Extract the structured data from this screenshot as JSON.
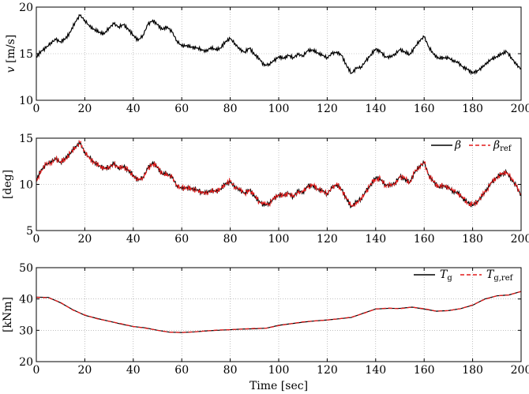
{
  "chart_data": [
    {
      "type": "line",
      "ylabel_var": "v",
      "ylabel_unit": "[m/s]",
      "xlim": [
        0,
        200
      ],
      "ylim": [
        10,
        20
      ],
      "grid": true,
      "x_ticks": [
        "0",
        "20",
        "40",
        "60",
        "80",
        "100",
        "120",
        "140",
        "160",
        "180",
        "200"
      ],
      "y_ticks": [
        "10",
        "15",
        "20"
      ],
      "series": [
        {
          "color": "#000000",
          "dash": "solid",
          "x": [
            0,
            2,
            4,
            6,
            8,
            10,
            12,
            14,
            16,
            18,
            20,
            22,
            24,
            26,
            28,
            30,
            32,
            34,
            36,
            38,
            40,
            42,
            44,
            46,
            48,
            50,
            52,
            54,
            56,
            58,
            60,
            62,
            64,
            66,
            68,
            70,
            72,
            74,
            76,
            78,
            80,
            82,
            84,
            86,
            88,
            90,
            92,
            94,
            96,
            98,
            100,
            102,
            104,
            106,
            108,
            110,
            112,
            114,
            116,
            118,
            120,
            122,
            124,
            126,
            128,
            130,
            132,
            134,
            136,
            138,
            140,
            142,
            144,
            146,
            148,
            150,
            152,
            154,
            156,
            158,
            160,
            162,
            164,
            166,
            168,
            170,
            172,
            174,
            176,
            178,
            180,
            182,
            184,
            186,
            188,
            190,
            192,
            194,
            196,
            198,
            200
          ],
          "values": [
            14.6,
            15.3,
            15.6,
            16.2,
            16.5,
            16.3,
            16.6,
            17.3,
            18.4,
            19.1,
            18.6,
            17.9,
            17.6,
            17.3,
            17.1,
            17.8,
            18.2,
            17.9,
            18.1,
            17.6,
            17.0,
            16.4,
            17.0,
            18.1,
            18.6,
            18.1,
            17.6,
            17.9,
            17.3,
            16.4,
            15.8,
            15.9,
            15.7,
            15.6,
            15.5,
            15.2,
            15.7,
            15.4,
            15.6,
            16.3,
            16.6,
            16.1,
            15.4,
            15.2,
            15.6,
            14.9,
            14.5,
            13.7,
            13.9,
            14.2,
            14.7,
            14.5,
            14.8,
            14.6,
            14.9,
            14.8,
            15.3,
            15.4,
            15.1,
            14.8,
            14.6,
            15.0,
            15.2,
            14.8,
            13.7,
            12.9,
            13.4,
            13.6,
            14.2,
            14.9,
            15.5,
            15.2,
            14.7,
            14.6,
            15.0,
            15.4,
            15.2,
            14.9,
            15.6,
            16.4,
            16.8,
            15.7,
            14.9,
            14.5,
            14.6,
            14.5,
            14.3,
            14.0,
            13.6,
            13.3,
            12.9,
            13.2,
            13.5,
            14.1,
            14.4,
            14.7,
            15.0,
            15.2,
            14.6,
            13.8,
            13.4
          ]
        }
      ]
    },
    {
      "type": "line",
      "ylabel": "[deg]",
      "xlim": [
        0,
        200
      ],
      "ylim": [
        5,
        15
      ],
      "grid": true,
      "x_ticks": [
        "0",
        "20",
        "40",
        "60",
        "80",
        "100",
        "120",
        "140",
        "160",
        "180",
        "200"
      ],
      "y_ticks": [
        "5",
        "10",
        "15"
      ],
      "legend_position": "top-right",
      "series": [
        {
          "name": "β",
          "color": "#000000",
          "dash": "solid",
          "x": [
            0,
            2,
            4,
            6,
            8,
            10,
            12,
            14,
            16,
            18,
            20,
            22,
            24,
            26,
            28,
            30,
            32,
            34,
            36,
            38,
            40,
            42,
            44,
            46,
            48,
            50,
            52,
            54,
            56,
            58,
            60,
            62,
            64,
            66,
            68,
            70,
            72,
            74,
            76,
            78,
            80,
            82,
            84,
            86,
            88,
            90,
            92,
            94,
            96,
            98,
            100,
            102,
            104,
            106,
            108,
            110,
            112,
            114,
            116,
            118,
            120,
            122,
            124,
            126,
            128,
            130,
            132,
            134,
            136,
            138,
            140,
            142,
            144,
            146,
            148,
            150,
            152,
            154,
            156,
            158,
            160,
            162,
            164,
            166,
            168,
            170,
            172,
            174,
            176,
            178,
            180,
            182,
            184,
            186,
            188,
            190,
            192,
            194,
            196,
            198,
            200
          ],
          "values": [
            10.4,
            11.6,
            12.1,
            12.5,
            12.7,
            12.4,
            12.8,
            13.3,
            14.1,
            14.4,
            13.5,
            12.8,
            12.4,
            12.0,
            11.7,
            11.9,
            12.2,
            11.8,
            11.9,
            11.5,
            11.0,
            10.4,
            10.8,
            11.7,
            12.4,
            11.8,
            11.1,
            11.2,
            10.7,
            9.9,
            9.5,
            9.7,
            9.5,
            9.4,
            9.2,
            9.0,
            9.4,
            9.2,
            9.5,
            10.1,
            10.2,
            9.8,
            9.3,
            9.1,
            9.4,
            8.7,
            8.2,
            7.7,
            8.0,
            8.4,
            8.9,
            8.8,
            9.0,
            8.7,
            9.2,
            9.2,
            9.8,
            9.9,
            9.5,
            9.3,
            9.0,
            9.6,
            10.0,
            9.4,
            8.4,
            7.6,
            8.0,
            8.5,
            9.2,
            10.0,
            10.7,
            10.5,
            10.0,
            9.8,
            10.2,
            10.8,
            10.6,
            10.2,
            11.2,
            12.0,
            12.3,
            11.0,
            10.2,
            9.7,
            9.9,
            9.6,
            9.3,
            9.0,
            8.5,
            8.0,
            7.7,
            8.2,
            8.7,
            9.6,
            10.2,
            10.8,
            11.1,
            11.3,
            10.6,
            9.8,
            8.8
          ]
        },
        {
          "name": "βref",
          "color": "#e21a1a",
          "dash": "dashed",
          "x": [
            0,
            2,
            4,
            6,
            8,
            10,
            12,
            14,
            16,
            18,
            20,
            22,
            24,
            26,
            28,
            30,
            32,
            34,
            36,
            38,
            40,
            42,
            44,
            46,
            48,
            50,
            52,
            54,
            56,
            58,
            60,
            62,
            64,
            66,
            68,
            70,
            72,
            74,
            76,
            78,
            80,
            82,
            84,
            86,
            88,
            90,
            92,
            94,
            96,
            98,
            100,
            102,
            104,
            106,
            108,
            110,
            112,
            114,
            116,
            118,
            120,
            122,
            124,
            126,
            128,
            130,
            132,
            134,
            136,
            138,
            140,
            142,
            144,
            146,
            148,
            150,
            152,
            154,
            156,
            158,
            160,
            162,
            164,
            166,
            168,
            170,
            172,
            174,
            176,
            178,
            180,
            182,
            184,
            186,
            188,
            190,
            192,
            194,
            196,
            198,
            200
          ],
          "values": [
            10.3,
            11.5,
            12.1,
            12.4,
            12.7,
            12.5,
            12.7,
            13.4,
            14.0,
            14.5,
            13.6,
            12.8,
            12.3,
            12.1,
            11.6,
            11.9,
            12.1,
            11.9,
            11.8,
            11.6,
            10.9,
            10.5,
            10.8,
            11.6,
            12.3,
            11.9,
            11.1,
            11.1,
            10.8,
            9.9,
            9.6,
            9.6,
            9.6,
            9.3,
            9.3,
            9.0,
            9.3,
            9.3,
            9.4,
            10.1,
            10.3,
            9.7,
            9.4,
            9.0,
            9.4,
            8.8,
            8.1,
            7.8,
            7.9,
            8.5,
            8.8,
            8.9,
            8.9,
            8.8,
            9.1,
            9.3,
            9.7,
            9.9,
            9.6,
            9.2,
            9.1,
            9.5,
            10.1,
            9.3,
            8.5,
            7.7,
            7.9,
            8.6,
            9.1,
            10.1,
            10.6,
            10.6,
            9.9,
            9.9,
            10.1,
            10.8,
            10.7,
            10.1,
            11.3,
            11.9,
            12.4,
            10.9,
            10.3,
            9.6,
            10.0,
            9.5,
            9.4,
            8.9,
            8.6,
            7.9,
            7.8,
            8.1,
            8.8,
            9.5,
            10.3,
            10.7,
            11.2,
            11.2,
            10.7,
            9.7,
            8.9
          ]
        }
      ]
    },
    {
      "type": "line",
      "ylabel": "[kNm]",
      "xlabel": "Time [sec]",
      "xlim": [
        0,
        200
      ],
      "ylim": [
        20,
        50
      ],
      "grid": true,
      "x_ticks": [
        "0",
        "20",
        "40",
        "60",
        "80",
        "100",
        "120",
        "140",
        "160",
        "180",
        "200"
      ],
      "y_ticks": [
        "20",
        "30",
        "40",
        "50"
      ],
      "legend_position": "top-right",
      "series": [
        {
          "name": "Tg",
          "color": "#000000",
          "dash": "solid",
          "x": [
            0,
            5,
            10,
            15,
            20,
            25,
            30,
            35,
            40,
            45,
            50,
            55,
            60,
            65,
            70,
            75,
            80,
            85,
            90,
            95,
            100,
            105,
            110,
            115,
            120,
            125,
            130,
            135,
            140,
            145,
            150,
            155,
            160,
            165,
            170,
            175,
            180,
            185,
            190,
            195,
            200
          ],
          "values": [
            40.6,
            40.5,
            38.8,
            36.6,
            34.8,
            33.8,
            32.9,
            32.0,
            31.2,
            30.8,
            30.0,
            29.4,
            29.3,
            29.5,
            29.8,
            30.0,
            30.2,
            30.4,
            30.5,
            30.7,
            31.6,
            32.1,
            32.6,
            33.0,
            33.3,
            33.7,
            34.1,
            35.5,
            36.8,
            37.0,
            37.0,
            37.4,
            36.8,
            36.1,
            36.3,
            36.9,
            38.0,
            40.0,
            41.0,
            41.3,
            42.4
          ]
        },
        {
          "name": "Tg,ref",
          "color": "#e21a1a",
          "dash": "dashed",
          "x": [
            0,
            5,
            10,
            15,
            20,
            25,
            30,
            35,
            40,
            45,
            50,
            55,
            60,
            65,
            70,
            75,
            80,
            85,
            90,
            95,
            100,
            105,
            110,
            115,
            120,
            125,
            130,
            135,
            140,
            145,
            150,
            155,
            160,
            165,
            170,
            175,
            180,
            185,
            190,
            195,
            200
          ],
          "values": [
            40.5,
            40.4,
            38.9,
            36.5,
            34.9,
            33.7,
            32.9,
            32.1,
            31.2,
            30.7,
            30.0,
            29.4,
            29.3,
            29.5,
            29.8,
            30.1,
            30.2,
            30.4,
            30.6,
            30.7,
            31.5,
            32.1,
            32.7,
            33.0,
            33.3,
            33.7,
            34.2,
            35.4,
            36.8,
            37.1,
            36.9,
            37.4,
            36.9,
            36.1,
            36.3,
            36.9,
            38.1,
            39.9,
            41.0,
            41.3,
            42.4
          ]
        }
      ]
    }
  ]
}
